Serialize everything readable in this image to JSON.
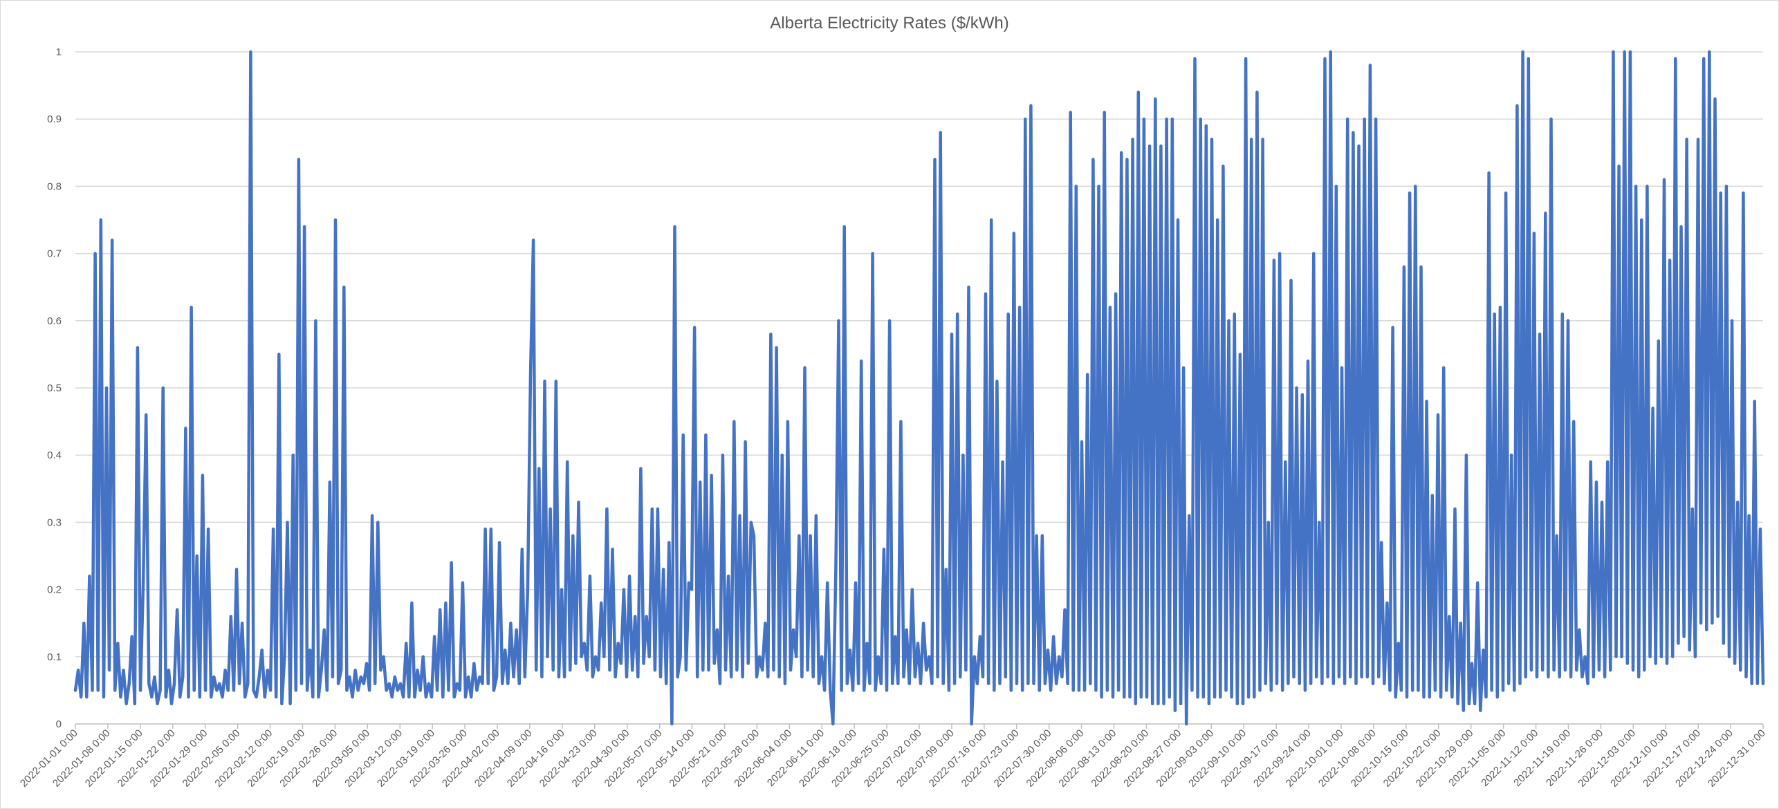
{
  "chart_data": {
    "type": "line",
    "title": "Alberta Electricity Rates ($/kWh)",
    "xlabel": "",
    "ylabel": "",
    "ylim": [
      0,
      1
    ],
    "y_ticks": [
      "0",
      "0.1",
      "0.2",
      "0.3",
      "0.4",
      "0.5",
      "0.6",
      "0.7",
      "0.8",
      "0.9",
      "1"
    ],
    "x_tick_labels": [
      "2022-01-01 0:00",
      "2022-01-08 0:00",
      "2022-01-15 0:00",
      "2022-01-22 0:00",
      "2022-01-29 0:00",
      "2022-02-05 0:00",
      "2022-02-12 0:00",
      "2022-02-19 0:00",
      "2022-02-26 0:00",
      "2022-03-05 0:00",
      "2022-03-12 0:00",
      "2022-03-19 0:00",
      "2022-03-26 0:00",
      "2022-04-02 0:00",
      "2022-04-09 0:00",
      "2022-04-16 0:00",
      "2022-04-23 0:00",
      "2022-04-30 0:00",
      "2022-05-07 0:00",
      "2022-05-14 0:00",
      "2022-05-21 0:00",
      "2022-05-28 0:00",
      "2022-06-04 0:00",
      "2022-06-11 0:00",
      "2022-06-18 0:00",
      "2022-06-25 0:00",
      "2022-07-02 0:00",
      "2022-07-09 0:00",
      "2022-07-16 0:00",
      "2022-07-23 0:00",
      "2022-07-30 0:00",
      "2022-08-06 0:00",
      "2022-08-13 0:00",
      "2022-08-20 0:00",
      "2022-08-27 0:00",
      "2022-09-03 0:00",
      "2022-09-10 0:00",
      "2022-09-17 0:00",
      "2022-09-24 0:00",
      "2022-10-01 0:00",
      "2022-10-08 0:00",
      "2022-10-15 0:00",
      "2022-10-22 0:00",
      "2022-10-29 0:00",
      "2022-11-05 0:00",
      "2022-11-12 0:00",
      "2022-11-19 0:00",
      "2022-11-26 0:00",
      "2022-12-03 0:00",
      "2022-12-10 0:00",
      "2022-12-17 0:00",
      "2022-12-24 0:00",
      "2022-12-31 0:00"
    ],
    "grid": true,
    "legend": "none",
    "series": [
      {
        "color": "#4472c4",
        "x_range": [
          "2022-01-01",
          "2022-12-31"
        ],
        "values": [
          0.05,
          0.08,
          0.04,
          0.15,
          0.04,
          0.22,
          0.05,
          0.7,
          0.05,
          0.75,
          0.04,
          0.5,
          0.08,
          0.72,
          0.05,
          0.12,
          0.04,
          0.08,
          0.03,
          0.06,
          0.13,
          0.03,
          0.56,
          0.05,
          0.21,
          0.46,
          0.06,
          0.04,
          0.07,
          0.03,
          0.05,
          0.5,
          0.04,
          0.08,
          0.03,
          0.06,
          0.17,
          0.04,
          0.07,
          0.44,
          0.04,
          0.62,
          0.05,
          0.25,
          0.04,
          0.37,
          0.05,
          0.29,
          0.04,
          0.07,
          0.05,
          0.06,
          0.04,
          0.08,
          0.05,
          0.16,
          0.05,
          0.23,
          0.06,
          0.15,
          0.04,
          0.06,
          1.0,
          0.05,
          0.04,
          0.07,
          0.11,
          0.04,
          0.08,
          0.05,
          0.29,
          0.04,
          0.55,
          0.03,
          0.1,
          0.3,
          0.03,
          0.4,
          0.05,
          0.84,
          0.06,
          0.74,
          0.05,
          0.11,
          0.04,
          0.6,
          0.04,
          0.08,
          0.14,
          0.05,
          0.36,
          0.07,
          0.75,
          0.06,
          0.08,
          0.65,
          0.05,
          0.07,
          0.04,
          0.08,
          0.05,
          0.07,
          0.06,
          0.09,
          0.05,
          0.31,
          0.06,
          0.3,
          0.08,
          0.1,
          0.05,
          0.06,
          0.04,
          0.07,
          0.05,
          0.06,
          0.04,
          0.12,
          0.04,
          0.18,
          0.04,
          0.08,
          0.05,
          0.1,
          0.04,
          0.06,
          0.04,
          0.13,
          0.05,
          0.17,
          0.04,
          0.18,
          0.05,
          0.24,
          0.04,
          0.06,
          0.05,
          0.21,
          0.04,
          0.07,
          0.04,
          0.09,
          0.05,
          0.07,
          0.06,
          0.29,
          0.06,
          0.29,
          0.05,
          0.07,
          0.27,
          0.06,
          0.11,
          0.06,
          0.15,
          0.07,
          0.14,
          0.06,
          0.26,
          0.07,
          0.2,
          0.52,
          0.72,
          0.08,
          0.38,
          0.07,
          0.51,
          0.1,
          0.32,
          0.08,
          0.51,
          0.07,
          0.2,
          0.07,
          0.39,
          0.08,
          0.28,
          0.09,
          0.33,
          0.1,
          0.12,
          0.08,
          0.22,
          0.07,
          0.1,
          0.08,
          0.18,
          0.1,
          0.32,
          0.08,
          0.26,
          0.07,
          0.12,
          0.09,
          0.2,
          0.07,
          0.22,
          0.08,
          0.16,
          0.07,
          0.38,
          0.09,
          0.16,
          0.1,
          0.32,
          0.08,
          0.32,
          0.07,
          0.23,
          0.06,
          0.27,
          0.0,
          0.74,
          0.07,
          0.1,
          0.43,
          0.08,
          0.21,
          0.2,
          0.59,
          0.07,
          0.36,
          0.08,
          0.43,
          0.08,
          0.37,
          0.09,
          0.14,
          0.06,
          0.4,
          0.08,
          0.22,
          0.07,
          0.45,
          0.08,
          0.31,
          0.07,
          0.42,
          0.09,
          0.3,
          0.28,
          0.07,
          0.1,
          0.08,
          0.15,
          0.07,
          0.58,
          0.08,
          0.56,
          0.07,
          0.4,
          0.06,
          0.45,
          0.08,
          0.14,
          0.1,
          0.28,
          0.07,
          0.53,
          0.08,
          0.28,
          0.07,
          0.31,
          0.06,
          0.1,
          0.05,
          0.21,
          0.05,
          0.0,
          0.23,
          0.6,
          0.05,
          0.74,
          0.06,
          0.11,
          0.05,
          0.21,
          0.06,
          0.54,
          0.05,
          0.12,
          0.06,
          0.7,
          0.05,
          0.1,
          0.06,
          0.26,
          0.05,
          0.6,
          0.06,
          0.13,
          0.06,
          0.45,
          0.07,
          0.14,
          0.06,
          0.2,
          0.07,
          0.12,
          0.06,
          0.15,
          0.08,
          0.1,
          0.06,
          0.84,
          0.07,
          0.88,
          0.06,
          0.23,
          0.05,
          0.58,
          0.06,
          0.61,
          0.07,
          0.4,
          0.08,
          0.65,
          0.0,
          0.1,
          0.06,
          0.13,
          0.07,
          0.64,
          0.06,
          0.75,
          0.05,
          0.51,
          0.06,
          0.39,
          0.07,
          0.61,
          0.05,
          0.73,
          0.06,
          0.62,
          0.05,
          0.9,
          0.06,
          0.92,
          0.06,
          0.28,
          0.05,
          0.28,
          0.06,
          0.11,
          0.05,
          0.13,
          0.06,
          0.1,
          0.07,
          0.17,
          0.06,
          0.91,
          0.05,
          0.8,
          0.05,
          0.42,
          0.05,
          0.52,
          0.06,
          0.84,
          0.05,
          0.8,
          0.04,
          0.91,
          0.05,
          0.62,
          0.04,
          0.64,
          0.05,
          0.85,
          0.04,
          0.84,
          0.04,
          0.87,
          0.03,
          0.94,
          0.04,
          0.9,
          0.04,
          0.86,
          0.03,
          0.93,
          0.03,
          0.86,
          0.03,
          0.9,
          0.04,
          0.9,
          0.02,
          0.75,
          0.03,
          0.53,
          0.0,
          0.31,
          0.05,
          0.99,
          0.04,
          0.9,
          0.04,
          0.89,
          0.03,
          0.87,
          0.04,
          0.75,
          0.04,
          0.83,
          0.05,
          0.6,
          0.04,
          0.61,
          0.03,
          0.55,
          0.03,
          0.99,
          0.04,
          0.87,
          0.04,
          0.94,
          0.05,
          0.87,
          0.06,
          0.3,
          0.05,
          0.69,
          0.06,
          0.7,
          0.05,
          0.39,
          0.06,
          0.66,
          0.07,
          0.5,
          0.06,
          0.49,
          0.05,
          0.54,
          0.06,
          0.7,
          0.07,
          0.3,
          0.06,
          0.99,
          0.07,
          1.0,
          0.06,
          0.8,
          0.07,
          0.53,
          0.06,
          0.9,
          0.07,
          0.88,
          0.06,
          0.86,
          0.07,
          0.9,
          0.07,
          0.98,
          0.06,
          0.9,
          0.07,
          0.27,
          0.06,
          0.18,
          0.05,
          0.59,
          0.04,
          0.12,
          0.05,
          0.68,
          0.04,
          0.79,
          0.05,
          0.8,
          0.05,
          0.68,
          0.04,
          0.48,
          0.04,
          0.34,
          0.05,
          0.46,
          0.04,
          0.53,
          0.05,
          0.16,
          0.04,
          0.32,
          0.03,
          0.15,
          0.02,
          0.4,
          0.03,
          0.09,
          0.03,
          0.21,
          0.02,
          0.11,
          0.04,
          0.82,
          0.05,
          0.61,
          0.04,
          0.62,
          0.05,
          0.79,
          0.06,
          0.4,
          0.05,
          0.92,
          0.06,
          1.0,
          0.07,
          0.99,
          0.08,
          0.73,
          0.07,
          0.58,
          0.08,
          0.76,
          0.07,
          0.9,
          0.08,
          0.28,
          0.07,
          0.61,
          0.08,
          0.6,
          0.07,
          0.45,
          0.08,
          0.14,
          0.07,
          0.1,
          0.06,
          0.39,
          0.07,
          0.36,
          0.08,
          0.33,
          0.07,
          0.39,
          0.08,
          1.0,
          0.1,
          0.83,
          0.1,
          1.0,
          0.09,
          1.0,
          0.08,
          0.8,
          0.07,
          0.75,
          0.08,
          0.8,
          0.1,
          0.47,
          0.09,
          0.57,
          0.1,
          0.81,
          0.09,
          0.69,
          0.1,
          0.99,
          0.12,
          0.74,
          0.13,
          0.87,
          0.11,
          0.32,
          0.1,
          0.87,
          0.15,
          0.99,
          0.14,
          1.0,
          0.15,
          0.93,
          0.16,
          0.79,
          0.12,
          0.8,
          0.1,
          0.6,
          0.09,
          0.33,
          0.08,
          0.79,
          0.07,
          0.31,
          0.06,
          0.48,
          0.06,
          0.29,
          0.06
        ]
      }
    ]
  }
}
